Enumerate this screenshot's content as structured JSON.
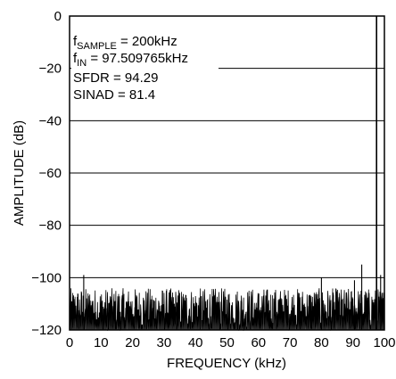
{
  "chart_data": {
    "type": "line",
    "xlabel": "FREQUENCY (kHz)",
    "ylabel": "AMPLITUDE (dB)",
    "xlim": [
      0,
      100
    ],
    "ylim": [
      -120,
      0
    ],
    "x_ticks": [
      "0",
      "10",
      "20",
      "30",
      "40",
      "50",
      "60",
      "70",
      "80",
      "90",
      "100"
    ],
    "y_ticks": [
      "0",
      "−20",
      "−40",
      "−60",
      "−80",
      "−100",
      "−120"
    ],
    "grid": "horizontal",
    "annotation": {
      "line1_prefix": "f",
      "line1_sub": "SAMPLE",
      "line1_value": " = 200kHz",
      "line2_prefix": "f",
      "line2_sub": "IN",
      "line2_value": " = 97.509765kHz",
      "line3": "SFDR = 94.29",
      "line4": "SINAD = 81.4"
    },
    "spectrum": {
      "noise_floor_db": -112,
      "noise_min_db": -120,
      "noise_max_db": -104,
      "peaks": [
        {
          "x": 4.5,
          "y": -99
        },
        {
          "x": 80,
          "y": -100
        },
        {
          "x": 90.5,
          "y": -101
        },
        {
          "x": 92.8,
          "y": -95
        },
        {
          "x": 97.51,
          "y": 0
        },
        {
          "x": 98.8,
          "y": -99
        }
      ]
    }
  }
}
